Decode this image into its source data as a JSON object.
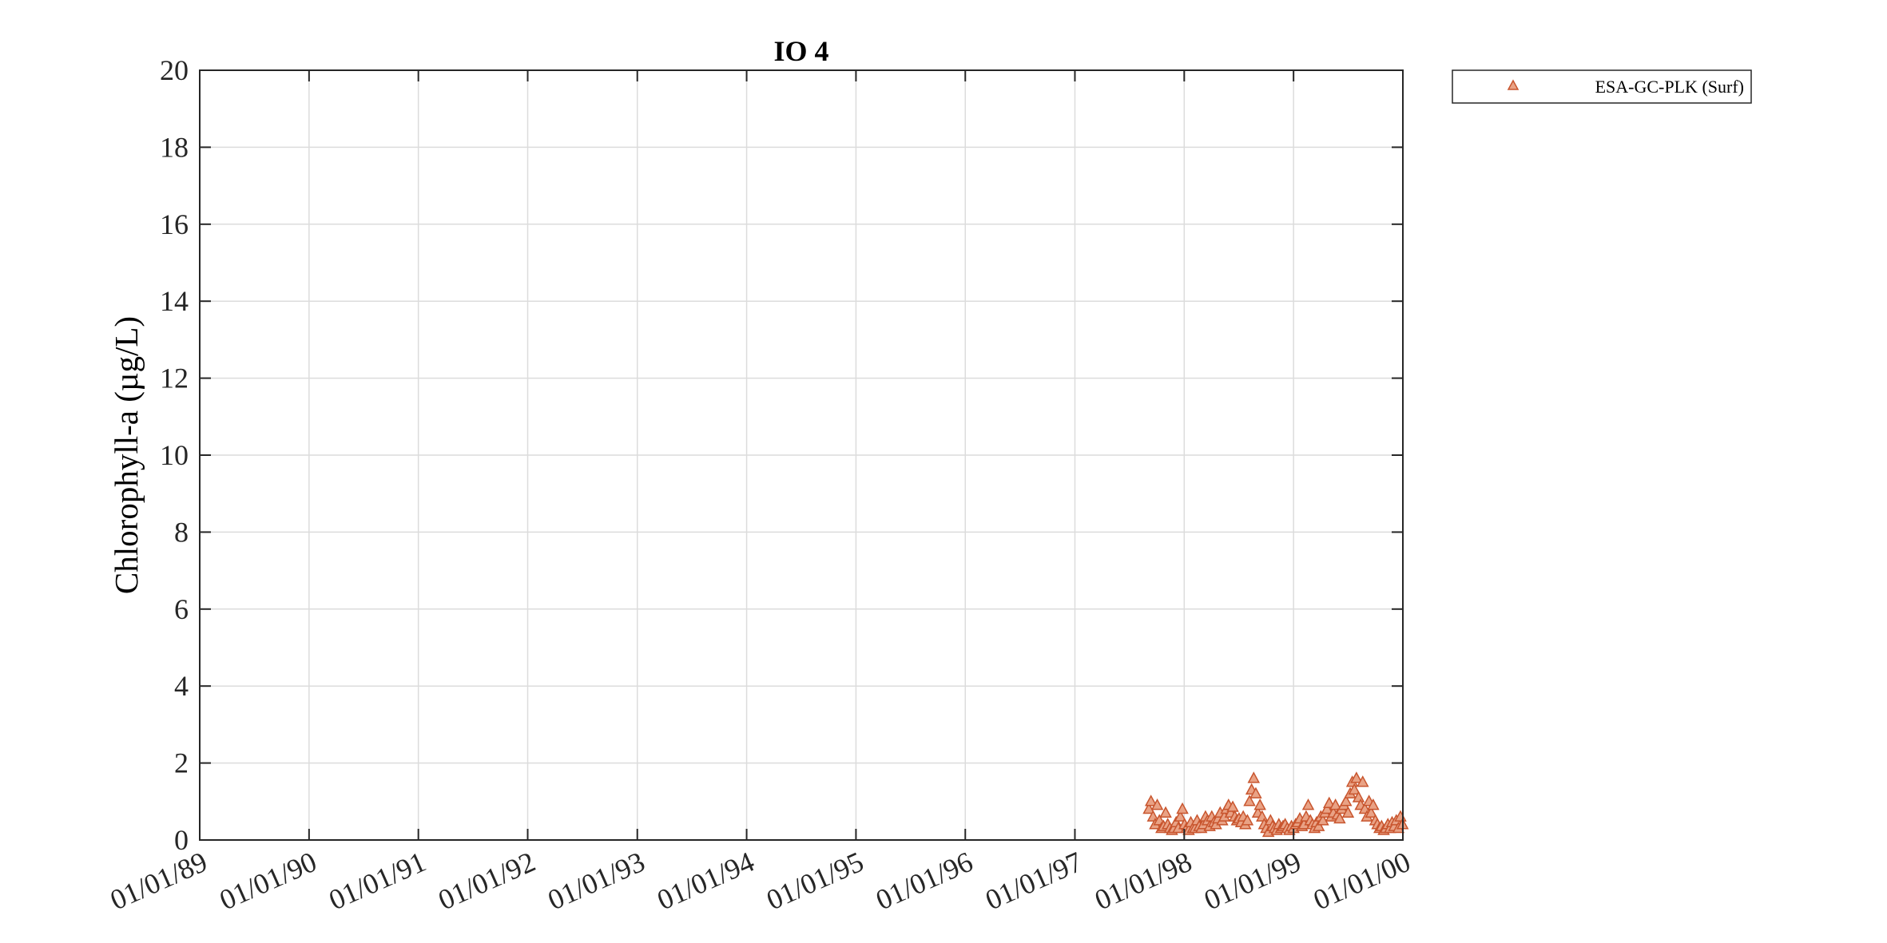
{
  "chart_data": {
    "type": "scatter",
    "title": "IO 4",
    "xlabel": "",
    "ylabel": "Chlorophyll-a (µg/L)",
    "x_type": "date",
    "xlim": [
      "1989-01-01",
      "2000-01-01"
    ],
    "ylim": [
      0,
      20
    ],
    "x_ticks": [
      "1989-01-01",
      "1990-01-01",
      "1991-01-01",
      "1992-01-01",
      "1993-01-01",
      "1994-01-01",
      "1995-01-01",
      "1996-01-01",
      "1997-01-01",
      "1998-01-01",
      "1999-01-01",
      "2000-01-01"
    ],
    "x_tick_labels": [
      "01/01/89",
      "01/01/90",
      "01/01/91",
      "01/01/92",
      "01/01/93",
      "01/01/94",
      "01/01/95",
      "01/01/96",
      "01/01/97",
      "01/01/98",
      "01/01/99",
      "01/01/00"
    ],
    "y_ticks": [
      0,
      2,
      4,
      6,
      8,
      10,
      12,
      14,
      16,
      18,
      20
    ],
    "y_tick_labels": [
      "0",
      "2",
      "4",
      "6",
      "8",
      "10",
      "12",
      "14",
      "16",
      "18",
      "20"
    ],
    "grid": true,
    "legend_position": "outside-top-right",
    "colors": {
      "marker_edge": "#c8552e",
      "marker_fill": "#e9a285",
      "grid": "#dcdcdc",
      "axis": "#262626"
    },
    "series": [
      {
        "name": "ESA-GC-PLK (Surf)",
        "marker": "triangle",
        "x": [
          "1997-09-05",
          "1997-09-12",
          "1997-09-19",
          "1997-09-26",
          "1997-10-03",
          "1997-10-10",
          "1997-10-17",
          "1997-10-24",
          "1997-10-31",
          "1997-11-07",
          "1997-11-14",
          "1997-11-21",
          "1997-11-28",
          "1997-12-05",
          "1997-12-12",
          "1997-12-19",
          "1997-12-26",
          "1998-01-02",
          "1998-01-09",
          "1998-01-16",
          "1998-01-23",
          "1998-01-30",
          "1998-02-06",
          "1998-02-13",
          "1998-02-20",
          "1998-02-27",
          "1998-03-06",
          "1998-03-13",
          "1998-03-20",
          "1998-03-27",
          "1998-04-03",
          "1998-04-10",
          "1998-04-17",
          "1998-04-24",
          "1998-05-01",
          "1998-05-08",
          "1998-05-15",
          "1998-05-22",
          "1998-05-29",
          "1998-06-05",
          "1998-06-12",
          "1998-06-19",
          "1998-06-26",
          "1998-07-03",
          "1998-07-10",
          "1998-07-17",
          "1998-07-24",
          "1998-07-31",
          "1998-08-07",
          "1998-08-14",
          "1998-08-21",
          "1998-08-28",
          "1998-09-04",
          "1998-09-11",
          "1998-09-18",
          "1998-09-25",
          "1998-10-02",
          "1998-10-09",
          "1998-10-16",
          "1998-10-23",
          "1998-10-30",
          "1998-11-06",
          "1998-11-13",
          "1998-11-20",
          "1998-11-27",
          "1998-12-04",
          "1998-12-11",
          "1998-12-18",
          "1998-12-25",
          "1999-01-01",
          "1999-01-08",
          "1999-01-15",
          "1999-01-22",
          "1999-01-29",
          "1999-02-05",
          "1999-02-12",
          "1999-02-19",
          "1999-02-26",
          "1999-03-05",
          "1999-03-12",
          "1999-03-19",
          "1999-03-26",
          "1999-04-02",
          "1999-04-09",
          "1999-04-16",
          "1999-04-23",
          "1999-04-30",
          "1999-05-07",
          "1999-05-14",
          "1999-05-21",
          "1999-05-28",
          "1999-06-04",
          "1999-06-11",
          "1999-06-18",
          "1999-06-25",
          "1999-07-02",
          "1999-07-09",
          "1999-07-16",
          "1999-07-23",
          "1999-07-30",
          "1999-08-06",
          "1999-08-13",
          "1999-08-20",
          "1999-08-27",
          "1999-09-03",
          "1999-09-10",
          "1999-09-17",
          "1999-09-24",
          "1999-10-01",
          "1999-10-08",
          "1999-10-15",
          "1999-10-22",
          "1999-10-29",
          "1999-11-05",
          "1999-11-12",
          "1999-11-19",
          "1999-11-26",
          "1999-12-03",
          "1999-12-10",
          "1999-12-17",
          "1999-12-24",
          "1999-12-31"
        ],
        "y": [
          0.8,
          1.0,
          0.6,
          0.4,
          0.9,
          0.5,
          0.3,
          0.35,
          0.7,
          0.4,
          0.3,
          0.25,
          0.3,
          0.45,
          0.3,
          0.6,
          0.8,
          0.4,
          0.3,
          0.25,
          0.45,
          0.3,
          0.3,
          0.5,
          0.35,
          0.3,
          0.4,
          0.6,
          0.5,
          0.35,
          0.6,
          0.45,
          0.4,
          0.55,
          0.7,
          0.5,
          0.6,
          0.8,
          0.9,
          0.7,
          0.85,
          0.6,
          0.5,
          0.55,
          0.45,
          0.6,
          0.4,
          0.5,
          1.0,
          1.3,
          1.6,
          1.2,
          0.7,
          0.9,
          0.6,
          0.4,
          0.3,
          0.2,
          0.5,
          0.35,
          0.3,
          0.25,
          0.4,
          0.3,
          0.35,
          0.4,
          0.3,
          0.25,
          0.35,
          0.3,
          0.4,
          0.45,
          0.55,
          0.35,
          0.4,
          0.6,
          0.9,
          0.5,
          0.4,
          0.3,
          0.45,
          0.35,
          0.6,
          0.5,
          0.7,
          0.8,
          0.95,
          0.6,
          0.7,
          0.9,
          0.65,
          0.55,
          0.8,
          0.9,
          1.0,
          0.7,
          1.2,
          1.5,
          1.3,
          1.6,
          1.1,
          0.9,
          1.5,
          0.8,
          0.6,
          1.0,
          0.7,
          0.9,
          0.5,
          0.4,
          0.3,
          0.35,
          0.25,
          0.3,
          0.4,
          0.3,
          0.45,
          0.35,
          0.5,
          0.3,
          0.6,
          0.4
        ]
      }
    ]
  }
}
